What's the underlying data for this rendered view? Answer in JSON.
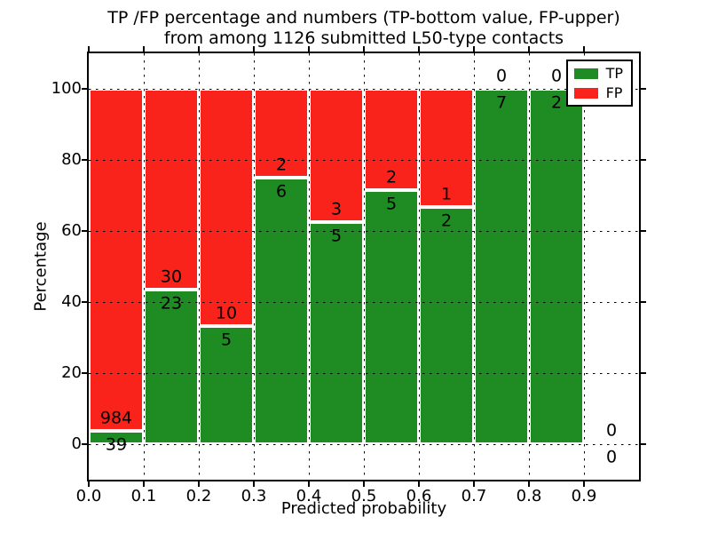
{
  "title": {
    "line1": "TP /FP percentage and numbers (TP-bottom value, FP-upper)",
    "line2": "from among 1126 submitted L50-type contacts"
  },
  "chart_data": {
    "type": "bar",
    "stacked": true,
    "title": "TP /FP percentage and numbers (TP-bottom value, FP-upper) from among 1126 submitted L50-type contacts",
    "xlabel": "Predicted probability",
    "ylabel": "Percentage",
    "xlim": [
      0.0,
      1.0
    ],
    "ylim": [
      -10,
      110
    ],
    "xticks": [
      0.0,
      0.1,
      0.2,
      0.3,
      0.4,
      0.5,
      0.6,
      0.7,
      0.8,
      0.9
    ],
    "xtick_labels": [
      "0.0",
      "0.1",
      "0.2",
      "0.3",
      "0.4",
      "0.5",
      "0.6",
      "0.7",
      "0.8",
      "0.9"
    ],
    "yticks": [
      0,
      20,
      40,
      60,
      80,
      100
    ],
    "ytick_labels": [
      "0",
      "20",
      "40",
      "60",
      "80",
      "100"
    ],
    "grid": "dotted, drawn above bars",
    "legend": {
      "position": "upper right",
      "entries": [
        {
          "label": "TP",
          "color": "#1e8b23"
        },
        {
          "label": "FP",
          "color": "#fa231b"
        }
      ]
    },
    "colors": {
      "tp": "#1e8b23",
      "fp": "#fa231b",
      "text": "#000000",
      "bar_edge": "#ffffff"
    },
    "bins": [
      {
        "x_range": [
          0.0,
          0.1
        ],
        "tp": 39,
        "fp": 984,
        "tp_pct": 3.8
      },
      {
        "x_range": [
          0.1,
          0.2
        ],
        "tp": 23,
        "fp": 30,
        "tp_pct": 43.4
      },
      {
        "x_range": [
          0.2,
          0.3
        ],
        "tp": 5,
        "fp": 10,
        "tp_pct": 33.3
      },
      {
        "x_range": [
          0.3,
          0.4
        ],
        "tp": 6,
        "fp": 2,
        "tp_pct": 75.0
      },
      {
        "x_range": [
          0.4,
          0.5
        ],
        "tp": 5,
        "fp": 3,
        "tp_pct": 62.5
      },
      {
        "x_range": [
          0.5,
          0.6
        ],
        "tp": 5,
        "fp": 2,
        "tp_pct": 71.4
      },
      {
        "x_range": [
          0.6,
          0.7
        ],
        "tp": 2,
        "fp": 1,
        "tp_pct": 66.7
      },
      {
        "x_range": [
          0.7,
          0.8
        ],
        "tp": 7,
        "fp": 0,
        "tp_pct": 100.0
      },
      {
        "x_range": [
          0.8,
          0.9
        ],
        "tp": 2,
        "fp": 0,
        "tp_pct": 100.0
      },
      {
        "x_range": [
          0.9,
          1.0
        ],
        "tp": 0,
        "fp": 0,
        "tp_pct": null
      }
    ],
    "total_submitted": 1126
  }
}
